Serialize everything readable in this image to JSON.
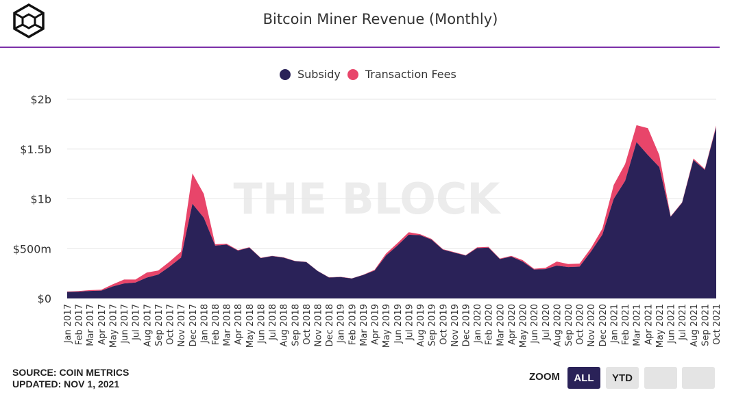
{
  "header": {
    "title": "Bitcoin Miner Revenue (Monthly)"
  },
  "watermark": "THE BLOCK",
  "footer": {
    "source": "SOURCE: COIN METRICS",
    "updated": "UPDATED: NOV 1, 2021"
  },
  "zoom": {
    "label": "ZOOM",
    "all_label": "ALL",
    "ytd_label": "YTD"
  },
  "colors": {
    "subsidy": "#2a2258",
    "fees": "#e8456a",
    "accent_rule": "#7b2fa8"
  },
  "chart_data": {
    "type": "area",
    "title": "Bitcoin Miner Revenue (Monthly)",
    "stacked": true,
    "yticks": [
      "$0",
      "$500m",
      "$1b",
      "$1.5b",
      "$2b"
    ],
    "ylim": [
      0,
      2000
    ],
    "yunit": "millions USD",
    "legend_position": "top-center",
    "grid": true,
    "categories": [
      "Jan 2017",
      "Feb 2017",
      "Mar 2017",
      "Apr 2017",
      "May 2017",
      "Jun 2017",
      "Jul 2017",
      "Aug 2017",
      "Sep 2017",
      "Oct 2017",
      "Nov 2017",
      "Dec 2017",
      "Jan 2018",
      "Feb 2018",
      "Mar 2018",
      "Apr 2018",
      "May 2018",
      "Jun 2018",
      "Jul 2018",
      "Aug 2018",
      "Sep 2018",
      "Oct 2018",
      "Nov 2018",
      "Dec 2018",
      "Jan 2019",
      "Feb 2019",
      "Mar 2019",
      "Apr 2019",
      "May 2019",
      "Jun 2019",
      "Jul 2019",
      "Aug 2019",
      "Sep 2019",
      "Oct 2019",
      "Nov 2019",
      "Dec 2019",
      "Jan 2020",
      "Feb 2020",
      "Mar 2020",
      "Apr 2020",
      "May 2020",
      "Jun 2020",
      "Jul 2020",
      "Aug 2020",
      "Sep 2020",
      "Oct 2020",
      "Nov 2020",
      "Dec 2020",
      "Jan 2021",
      "Feb 2021",
      "Mar 2021",
      "Apr 2021",
      "May 2021",
      "Jun 2021",
      "Jul 2021",
      "Aug 2021",
      "Sep 2021",
      "Oct 2021"
    ],
    "series": [
      {
        "name": "Subsidy",
        "values": [
          65,
          68,
          75,
          78,
          120,
          150,
          160,
          210,
          240,
          320,
          410,
          950,
          810,
          530,
          540,
          480,
          510,
          405,
          425,
          410,
          375,
          365,
          275,
          210,
          215,
          200,
          235,
          280,
          430,
          530,
          640,
          635,
          590,
          490,
          460,
          430,
          505,
          510,
          395,
          420,
          370,
          290,
          295,
          330,
          315,
          320,
          470,
          640,
          1000,
          1180,
          1570,
          1440,
          1320,
          820,
          960,
          1390,
          1290,
          1720
        ]
      },
      {
        "name": "Transaction Fees",
        "values": [
          5,
          6,
          8,
          10,
          22,
          40,
          30,
          50,
          40,
          50,
          60,
          305,
          240,
          14,
          10,
          5,
          5,
          3,
          3,
          3,
          2,
          3,
          2,
          2,
          2,
          2,
          3,
          8,
          20,
          25,
          25,
          10,
          8,
          5,
          5,
          5,
          8,
          8,
          5,
          8,
          15,
          8,
          12,
          40,
          30,
          30,
          35,
          60,
          140,
          170,
          170,
          270,
          120,
          5,
          5,
          15,
          10,
          15
        ]
      }
    ]
  }
}
